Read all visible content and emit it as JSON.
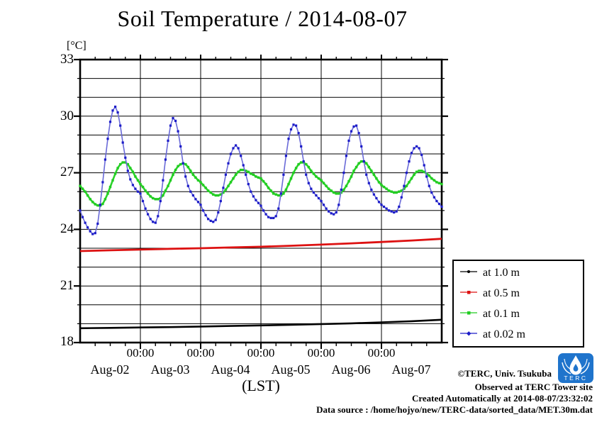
{
  "header": {
    "title": "Soil Temperature / 2014-08-07"
  },
  "chart": {
    "unit_label": "[°C]",
    "xlabel": "(LST)",
    "time_tick_label": "00:00",
    "y_ticks": [
      "33",
      "30",
      "27",
      "24",
      "21",
      "18"
    ],
    "day_labels": [
      "Aug-02",
      "Aug-03",
      "Aug-04",
      "Aug-05",
      "Aug-06",
      "Aug-07"
    ]
  },
  "legend": {
    "items": [
      {
        "label": "at 1.0 m",
        "color": "#000000",
        "marker_shape": "dot"
      },
      {
        "label": "at 0.5 m",
        "color": "#dd1111",
        "marker_shape": "square"
      },
      {
        "label": "at 0.1 m",
        "color": "#22cc22",
        "marker_shape": "square"
      },
      {
        "label": "at 0.02 m",
        "color": "#1c1cc8",
        "marker_shape": "diamond"
      }
    ]
  },
  "footer": {
    "copyright": "©TERC, Univ. Tsukuba",
    "observed": "Observed at TERC Tower site",
    "created": "Created Automatically at 2014-08-07/23:32:02",
    "datasource": "Data source : /home/hojyo/new/TERC-data/sorted_data/MET.30m.dat",
    "logo_text": "TERC"
  },
  "chart_data": {
    "type": "line",
    "title": "Soil Temperature / 2014-08-07",
    "xlabel": "(LST)",
    "ylabel": "[°C]",
    "ylim": [
      18,
      33
    ],
    "x_hours_range": [
      0,
      144
    ],
    "x_day_starts": [
      "Aug-02",
      "Aug-03",
      "Aug-04",
      "Aug-05",
      "Aug-06",
      "Aug-07"
    ],
    "grid": {
      "horizontal_every_c": 1,
      "vertical_gridlines_hours": [
        24,
        48,
        72,
        96,
        120
      ],
      "minor_tick_hours": 6
    },
    "legend_position": "right-middle",
    "series": [
      {
        "name": "at 1.0 m",
        "line_color": "#000000",
        "marker_color": "#000000",
        "line_width": 2.6,
        "marker": "none",
        "marker_size": 0,
        "x_start_hour": 0,
        "x_step_hours": 12,
        "values": [
          18.76,
          18.78,
          18.8,
          18.82,
          18.85,
          18.88,
          18.91,
          18.94,
          18.98,
          19.02,
          19.07,
          19.13,
          19.21
        ]
      },
      {
        "name": "at 0.5 m",
        "line_color": "#dd1111",
        "marker_color": "#dd1111",
        "line_width": 2.8,
        "marker": "none",
        "marker_size": 0,
        "x_start_hour": 0,
        "x_step_hours": 12,
        "values": [
          22.85,
          22.89,
          22.93,
          22.97,
          23.0,
          23.04,
          23.08,
          23.13,
          23.19,
          23.26,
          23.33,
          23.41,
          23.5
        ]
      },
      {
        "name": "at 0.1 m",
        "line_color": "#2bd42b",
        "marker_color": "#22cc22",
        "line_width": 2.6,
        "marker": "square",
        "marker_size": 3.4,
        "x_start_hour": 0,
        "x_step_hours": 1,
        "values": [
          26.3,
          26.15,
          26.0,
          25.8,
          25.6,
          25.45,
          25.33,
          25.27,
          25.25,
          25.35,
          25.6,
          25.9,
          26.25,
          26.6,
          26.95,
          27.25,
          27.45,
          27.55,
          27.55,
          27.45,
          27.25,
          27.05,
          26.8,
          26.6,
          26.4,
          26.25,
          26.05,
          25.9,
          25.75,
          25.65,
          25.6,
          25.6,
          25.65,
          25.8,
          26.05,
          26.3,
          26.6,
          26.9,
          27.15,
          27.35,
          27.45,
          27.5,
          27.45,
          27.3,
          27.1,
          26.9,
          26.75,
          26.6,
          26.5,
          26.35,
          26.2,
          26.05,
          25.95,
          25.85,
          25.8,
          25.8,
          25.85,
          25.95,
          26.1,
          26.3,
          26.5,
          26.7,
          26.9,
          27.05,
          27.15,
          27.15,
          27.1,
          27.05,
          26.95,
          26.9,
          26.8,
          26.75,
          26.7,
          26.55,
          26.4,
          26.2,
          26.05,
          25.9,
          25.85,
          25.8,
          25.8,
          25.9,
          26.1,
          26.4,
          26.7,
          27.0,
          27.25,
          27.45,
          27.55,
          27.55,
          27.45,
          27.3,
          27.1,
          26.95,
          26.8,
          26.7,
          26.6,
          26.45,
          26.3,
          26.15,
          26.05,
          25.95,
          25.9,
          25.9,
          25.95,
          26.1,
          26.3,
          26.55,
          26.8,
          27.1,
          27.3,
          27.5,
          27.6,
          27.6,
          27.5,
          27.3,
          27.1,
          26.9,
          26.7,
          26.5,
          26.35,
          26.25,
          26.15,
          26.05,
          26.0,
          25.95,
          25.95,
          26.0,
          26.05,
          26.15,
          26.3,
          26.5,
          26.7,
          26.9,
          27.05,
          27.1,
          27.1,
          27.05,
          26.95,
          26.85,
          26.7,
          26.6,
          26.5,
          26.45,
          26.4
        ]
      },
      {
        "name": "at 0.02 m",
        "line_color": "#6a6ad8",
        "marker_color": "#1c1cc8",
        "line_width": 1.6,
        "marker": "square",
        "marker_size": 3.2,
        "x_start_hour": 0,
        "x_step_hours": 1,
        "values": [
          25.0,
          24.65,
          24.35,
          24.1,
          23.9,
          23.75,
          23.8,
          24.3,
          25.3,
          26.5,
          27.7,
          28.8,
          29.7,
          30.3,
          30.5,
          30.2,
          29.5,
          28.6,
          27.8,
          27.1,
          26.65,
          26.35,
          26.15,
          26.0,
          25.9,
          25.5,
          25.1,
          24.8,
          24.55,
          24.4,
          24.35,
          24.7,
          25.5,
          26.6,
          27.7,
          28.7,
          29.5,
          29.9,
          29.75,
          29.2,
          28.4,
          27.5,
          26.8,
          26.3,
          26.0,
          25.8,
          25.6,
          25.45,
          25.3,
          25.0,
          24.75,
          24.55,
          24.45,
          24.4,
          24.5,
          24.9,
          25.5,
          26.2,
          26.9,
          27.5,
          28.0,
          28.3,
          28.45,
          28.3,
          27.9,
          27.4,
          26.9,
          26.4,
          26.0,
          25.75,
          25.55,
          25.4,
          25.25,
          25.0,
          24.8,
          24.65,
          24.6,
          24.6,
          24.7,
          25.1,
          25.9,
          26.9,
          27.9,
          28.8,
          29.3,
          29.55,
          29.5,
          29.1,
          28.4,
          27.6,
          26.9,
          26.45,
          26.15,
          25.95,
          25.8,
          25.65,
          25.5,
          25.3,
          25.1,
          24.95,
          24.85,
          24.8,
          24.9,
          25.3,
          26.1,
          27.0,
          27.9,
          28.7,
          29.2,
          29.45,
          29.5,
          29.1,
          28.4,
          27.6,
          26.9,
          26.45,
          26.1,
          25.85,
          25.65,
          25.45,
          25.3,
          25.2,
          25.1,
          25.0,
          24.95,
          24.9,
          24.95,
          25.2,
          25.7,
          26.3,
          27.0,
          27.6,
          28.05,
          28.3,
          28.4,
          28.3,
          27.95,
          27.4,
          26.8,
          26.3,
          25.95,
          25.7,
          25.5,
          25.35,
          25.2
        ]
      }
    ]
  }
}
